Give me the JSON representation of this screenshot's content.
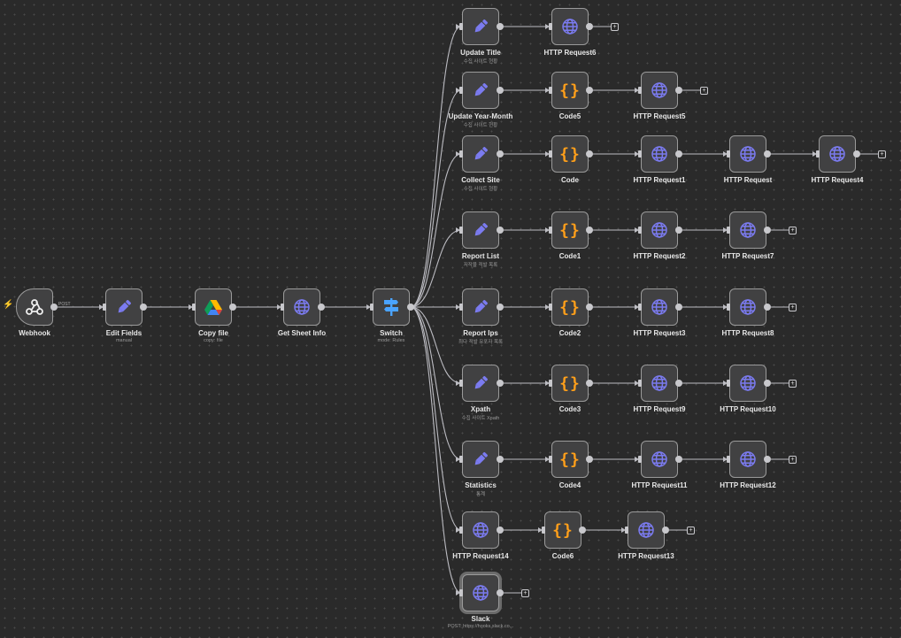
{
  "colors": {
    "canvas": "#2a2a2a",
    "node_bg": "#414142",
    "node_border": "#9a9a9a",
    "edge": "#bcbcc2",
    "icon_purple": "#7b7bf0",
    "code_orange": "#ff9f1a",
    "switch_blue": "#4aa3ff",
    "trigger_red": "#ff5a5a"
  },
  "nodes": [
    {
      "id": "webhook",
      "name": "Webhook",
      "subtitle": "",
      "icon": "webhook-icon"
    },
    {
      "id": "edit",
      "name": "Edit Fields",
      "subtitle": "manual",
      "icon": "pencil-icon"
    },
    {
      "id": "copy",
      "name": "Copy file",
      "subtitle": "copy: file",
      "icon": "google-drive-icon"
    },
    {
      "id": "sheet",
      "name": "Get Sheet Info",
      "subtitle": "",
      "icon": "globe-icon"
    },
    {
      "id": "switch",
      "name": "Switch",
      "subtitle": "mode: Rules",
      "icon": "signpost-icon"
    },
    {
      "id": "ut",
      "name": "Update Title",
      "subtitle": "수집 사이트 현황",
      "icon": "pencil-icon"
    },
    {
      "id": "h6",
      "name": "HTTP Request6",
      "subtitle": "",
      "icon": "globe-icon"
    },
    {
      "id": "uym",
      "name": "Update Year-Month",
      "subtitle": "수집 사이트 현황",
      "icon": "pencil-icon"
    },
    {
      "id": "c5",
      "name": "Code5",
      "subtitle": "",
      "icon": "code-braces-icon"
    },
    {
      "id": "h5",
      "name": "HTTP Request5",
      "subtitle": "",
      "icon": "globe-icon"
    },
    {
      "id": "cs",
      "name": "Collect Site",
      "subtitle": "수집 사이트 현황",
      "icon": "pencil-icon"
    },
    {
      "id": "c",
      "name": "Code",
      "subtitle": "",
      "icon": "code-braces-icon"
    },
    {
      "id": "h1",
      "name": "HTTP Request1",
      "subtitle": "",
      "icon": "globe-icon"
    },
    {
      "id": "h",
      "name": "HTTP Request",
      "subtitle": "",
      "icon": "globe-icon"
    },
    {
      "id": "h4",
      "name": "HTTP Request4",
      "subtitle": "",
      "icon": "globe-icon"
    },
    {
      "id": "rl",
      "name": "Report List",
      "subtitle": "저작물 적발 목록",
      "icon": "pencil-icon"
    },
    {
      "id": "c1",
      "name": "Code1",
      "subtitle": "",
      "icon": "code-braces-icon"
    },
    {
      "id": "h2",
      "name": "HTTP Request2",
      "subtitle": "",
      "icon": "globe-icon"
    },
    {
      "id": "h7",
      "name": "HTTP Request7",
      "subtitle": "",
      "icon": "globe-icon"
    },
    {
      "id": "ri",
      "name": "Report Ips",
      "subtitle": "최다 적발 유포자 목록",
      "icon": "pencil-icon"
    },
    {
      "id": "c2",
      "name": "Code2",
      "subtitle": "",
      "icon": "code-braces-icon"
    },
    {
      "id": "h3",
      "name": "HTTP Request3",
      "subtitle": "",
      "icon": "globe-icon"
    },
    {
      "id": "h8",
      "name": "HTTP Request8",
      "subtitle": "",
      "icon": "globe-icon"
    },
    {
      "id": "xp",
      "name": "Xpath",
      "subtitle": "수집 사이트 Xpath",
      "icon": "pencil-icon"
    },
    {
      "id": "c3",
      "name": "Code3",
      "subtitle": "",
      "icon": "code-braces-icon"
    },
    {
      "id": "h9",
      "name": "HTTP Request9",
      "subtitle": "",
      "icon": "globe-icon"
    },
    {
      "id": "h10",
      "name": "HTTP Request10",
      "subtitle": "",
      "icon": "globe-icon"
    },
    {
      "id": "st",
      "name": "Statistics",
      "subtitle": "통계",
      "icon": "pencil-icon"
    },
    {
      "id": "c4",
      "name": "Code4",
      "subtitle": "",
      "icon": "code-braces-icon"
    },
    {
      "id": "h11",
      "name": "HTTP Request11",
      "subtitle": "",
      "icon": "globe-icon"
    },
    {
      "id": "h12",
      "name": "HTTP Request12",
      "subtitle": "",
      "icon": "globe-icon"
    },
    {
      "id": "h14",
      "name": "HTTP Request14",
      "subtitle": "",
      "icon": "globe-icon"
    },
    {
      "id": "c6",
      "name": "Code6",
      "subtitle": "",
      "icon": "code-braces-icon"
    },
    {
      "id": "h13",
      "name": "HTTP Request13",
      "subtitle": "",
      "icon": "globe-icon"
    },
    {
      "id": "slack",
      "name": "Slack",
      "subtitle": "POST: https://hooks.slack.co...",
      "icon": "globe-icon",
      "selected": true
    }
  ],
  "connections": [
    [
      "webhook",
      "edit",
      "POST"
    ],
    [
      "edit",
      "copy"
    ],
    [
      "copy",
      "sheet"
    ],
    [
      "sheet",
      "switch"
    ],
    [
      "switch",
      "ut"
    ],
    [
      "switch",
      "uym"
    ],
    [
      "switch",
      "cs"
    ],
    [
      "switch",
      "rl"
    ],
    [
      "switch",
      "ri"
    ],
    [
      "switch",
      "xp"
    ],
    [
      "switch",
      "st"
    ],
    [
      "switch",
      "h14"
    ],
    [
      "switch",
      "slack"
    ],
    [
      "ut",
      "h6"
    ],
    [
      "uym",
      "c5"
    ],
    [
      "c5",
      "h5"
    ],
    [
      "cs",
      "c"
    ],
    [
      "c",
      "h1"
    ],
    [
      "h1",
      "h"
    ],
    [
      "h",
      "h4"
    ],
    [
      "rl",
      "c1"
    ],
    [
      "c1",
      "h2"
    ],
    [
      "h2",
      "h7"
    ],
    [
      "ri",
      "c2"
    ],
    [
      "c2",
      "h3"
    ],
    [
      "h3",
      "h8"
    ],
    [
      "xp",
      "c3"
    ],
    [
      "c3",
      "h9"
    ],
    [
      "h9",
      "h10"
    ],
    [
      "st",
      "c4"
    ],
    [
      "c4",
      "h11"
    ],
    [
      "h11",
      "h12"
    ],
    [
      "h14",
      "c6"
    ],
    [
      "c6",
      "h13"
    ]
  ],
  "add_buttons": [
    "h6",
    "h5",
    "h4",
    "h7",
    "h8",
    "h10",
    "h12",
    "h13",
    "slack"
  ],
  "add_label": "+"
}
